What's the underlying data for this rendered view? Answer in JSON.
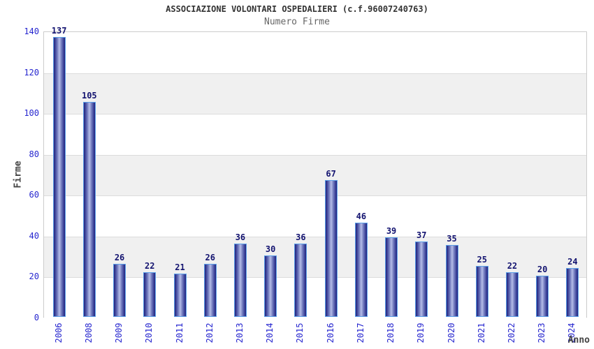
{
  "chart_data": {
    "type": "bar",
    "title": "ASSOCIAZIONE VOLONTARI OSPEDALIERI (c.f.96007240763)",
    "subtitle": "Numero Firme",
    "xlabel": "Anno",
    "ylabel": "Firme",
    "categories": [
      "2006",
      "2008",
      "2009",
      "2010",
      "2011",
      "2012",
      "2013",
      "2014",
      "2015",
      "2016",
      "2017",
      "2018",
      "2019",
      "2020",
      "2021",
      "2022",
      "2023",
      "2024"
    ],
    "values": [
      137,
      105,
      26,
      22,
      21,
      26,
      36,
      30,
      36,
      67,
      46,
      39,
      37,
      35,
      25,
      22,
      20,
      24
    ],
    "ylim": [
      0,
      140
    ],
    "ytick_step": 20,
    "yticks": [
      0,
      20,
      40,
      60,
      80,
      100,
      120,
      140
    ],
    "grid": true,
    "legend": "none",
    "value_labels_shown": true
  },
  "colors": {
    "background": "#ffffff",
    "title": "#333333",
    "subtitle": "#666666",
    "axis_name": "#444444",
    "tick_label": "#2626cf",
    "value_label": "#131370",
    "bar_border": "#5b9fe8",
    "bar_edge": "#23237d",
    "bar_mid": "#3c4298",
    "bar_highlight": "#b6bde8",
    "band_gray": "#f0f0f0",
    "gridline": "#dcdcdc",
    "plot_border": "#cccccc"
  }
}
